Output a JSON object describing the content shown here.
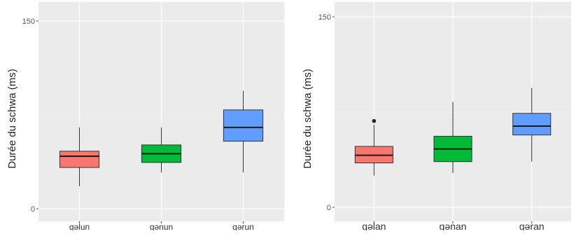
{
  "chart_data": [
    {
      "type": "boxplot",
      "ylabel": "Durée du schwa (ms)",
      "yticks": [
        0,
        150
      ],
      "ylim": [
        0,
        150
      ],
      "categories": [
        "gəlun",
        "gənun",
        "gərun"
      ],
      "colors": [
        "#f8766d",
        "#00ba38",
        "#619cff"
      ],
      "boxes": [
        {
          "category": "gəlun",
          "min": 18,
          "q1": 33,
          "median": 42,
          "q3": 46,
          "max": 65,
          "outliers": []
        },
        {
          "category": "gənun",
          "min": 29,
          "q1": 37,
          "median": 44,
          "q3": 51,
          "max": 65,
          "outliers": []
        },
        {
          "category": "gərun",
          "min": 29,
          "q1": 54,
          "median": 65,
          "q3": 79,
          "max": 94,
          "outliers": []
        }
      ]
    },
    {
      "type": "boxplot",
      "ylabel": "Durée du schwa (ms)",
      "yticks": [
        0,
        150
      ],
      "ylim": [
        0,
        150
      ],
      "categories": [
        "gəlan",
        "gənan",
        "gəran"
      ],
      "colors": [
        "#f8766d",
        "#00ba38",
        "#619cff"
      ],
      "boxes": [
        {
          "category": "gəlan",
          "min": 25,
          "q1": 35,
          "median": 41,
          "q3": 48,
          "max": 65,
          "outliers": [
            68
          ]
        },
        {
          "category": "gənan",
          "min": 27,
          "q1": 36,
          "median": 46,
          "q3": 56,
          "max": 83,
          "outliers": []
        },
        {
          "category": "gəran",
          "min": 36,
          "q1": 57,
          "median": 64,
          "q3": 74,
          "max": 94,
          "outliers": []
        }
      ]
    }
  ]
}
